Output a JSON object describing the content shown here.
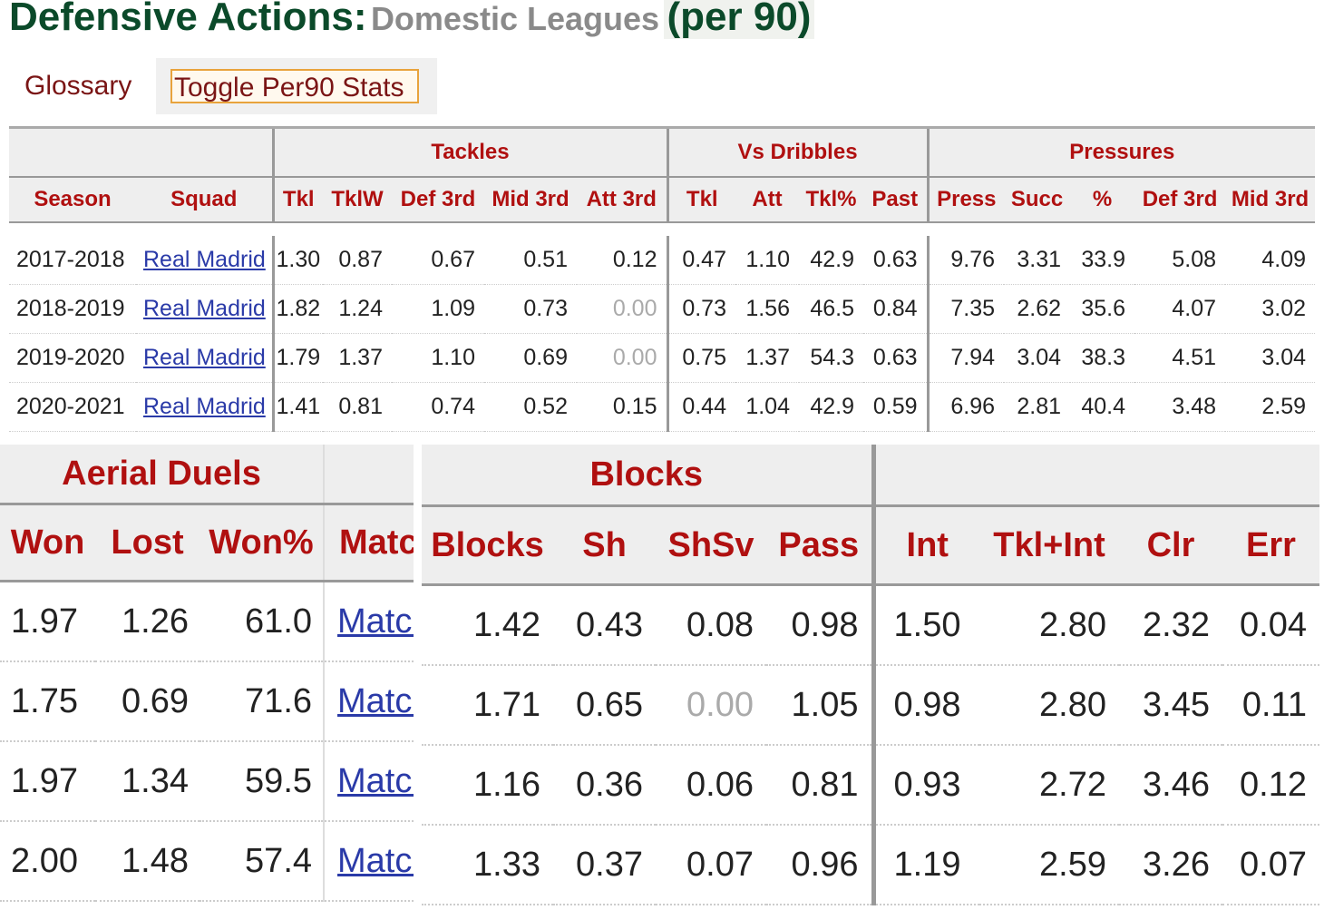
{
  "title": {
    "main": "Defensive Actions",
    "colon": ":",
    "sub": "Domestic Leagues",
    "per": "(per 90)"
  },
  "controls": {
    "glossary": "Glossary",
    "toggle": "Toggle Per90 Stats"
  },
  "top_table": {
    "groups": [
      "Tackles",
      "Vs Dribbles",
      "Pressures"
    ],
    "columns": [
      "Season",
      "Squad",
      "Tkl",
      "TklW",
      "Def 3rd",
      "Mid 3rd",
      "Att 3rd",
      "Tkl",
      "Att",
      "Tkl%",
      "Past",
      "Press",
      "Succ",
      "%",
      "Def 3rd",
      "Mid 3rd"
    ],
    "rows": [
      {
        "season": "2017-2018",
        "squad": "Real Madrid",
        "vals": [
          "1.30",
          "0.87",
          "0.67",
          "0.51",
          "0.12",
          "0.47",
          "1.10",
          "42.9",
          "0.63",
          "9.76",
          "3.31",
          "33.9",
          "5.08",
          "4.09"
        ]
      },
      {
        "season": "2018-2019",
        "squad": "Real Madrid",
        "vals": [
          "1.82",
          "1.24",
          "1.09",
          "0.73",
          "0.00",
          "0.73",
          "1.56",
          "46.5",
          "0.84",
          "7.35",
          "2.62",
          "35.6",
          "4.07",
          "3.02"
        ]
      },
      {
        "season": "2019-2020",
        "squad": "Real Madrid",
        "vals": [
          "1.79",
          "1.37",
          "1.10",
          "0.69",
          "0.00",
          "0.75",
          "1.37",
          "54.3",
          "0.63",
          "7.94",
          "3.04",
          "38.3",
          "4.51",
          "3.04"
        ]
      },
      {
        "season": "2020-2021",
        "squad": "Real Madrid",
        "vals": [
          "1.41",
          "0.81",
          "0.74",
          "0.52",
          "0.15",
          "0.44",
          "1.04",
          "42.9",
          "0.59",
          "6.96",
          "2.81",
          "40.4",
          "3.48",
          "2.59"
        ]
      }
    ]
  },
  "aerial_table": {
    "group": "Aerial Duels",
    "columns": [
      "Won",
      "Lost",
      "Won%",
      "Matches"
    ],
    "rows": [
      [
        "1.97",
        "1.26",
        "61.0",
        "Matches"
      ],
      [
        "1.75",
        "0.69",
        "71.6",
        "Matches"
      ],
      [
        "1.97",
        "1.34",
        "59.5",
        "Matches"
      ],
      [
        "2.00",
        "1.48",
        "57.4",
        "Matches"
      ]
    ]
  },
  "blocks_table": {
    "group": "Blocks",
    "columns": [
      "Blocks",
      "Sh",
      "ShSv",
      "Pass",
      "Int",
      "Tkl+Int",
      "Clr",
      "Err"
    ],
    "rows": [
      [
        "1.42",
        "0.43",
        "0.08",
        "0.98",
        "1.50",
        "2.80",
        "2.32",
        "0.04"
      ],
      [
        "1.71",
        "0.65",
        "0.00",
        "1.05",
        "0.98",
        "2.80",
        "3.45",
        "0.11"
      ],
      [
        "1.16",
        "0.36",
        "0.06",
        "0.81",
        "0.93",
        "2.72",
        "3.46",
        "0.12"
      ],
      [
        "1.33",
        "0.37",
        "0.07",
        "0.96",
        "1.19",
        "2.59",
        "3.26",
        "0.07"
      ]
    ]
  },
  "colors": {
    "header_text": "#b01010",
    "title_green": "#0b4a2a",
    "link": "#2a3aa8",
    "zero": "#aaaaaa"
  }
}
